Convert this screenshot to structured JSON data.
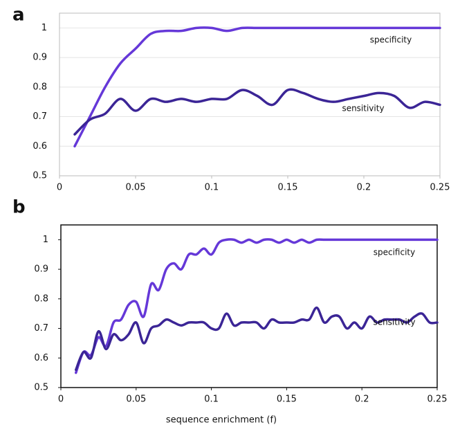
{
  "chart_data": [
    {
      "type": "line",
      "panel_label": "a",
      "grid": true,
      "xlim": [
        0,
        0.25
      ],
      "ylim": [
        0.5,
        1.05
      ],
      "xticks": [
        0,
        0.05,
        0.1,
        0.15,
        0.2,
        0.25
      ],
      "yticks": [
        0.5,
        0.6,
        0.7,
        0.8,
        0.9,
        1
      ],
      "x": [
        0.01,
        0.02,
        0.03,
        0.04,
        0.05,
        0.06,
        0.07,
        0.08,
        0.09,
        0.1,
        0.11,
        0.12,
        0.13,
        0.14,
        0.15,
        0.16,
        0.17,
        0.18,
        0.19,
        0.2,
        0.21,
        0.22,
        0.23,
        0.24,
        0.25
      ],
      "series": [
        {
          "name": "specificity",
          "color": "#6538d8",
          "values": [
            0.6,
            0.7,
            0.8,
            0.88,
            0.93,
            0.98,
            0.99,
            0.99,
            1,
            1,
            0.99,
            1,
            1,
            1,
            1,
            1,
            1,
            1,
            1,
            1,
            1,
            1,
            1,
            1,
            1
          ]
        },
        {
          "name": "sensitivity",
          "color": "#3b2596",
          "values": [
            0.64,
            0.69,
            0.71,
            0.76,
            0.72,
            0.76,
            0.75,
            0.76,
            0.75,
            0.76,
            0.76,
            0.79,
            0.77,
            0.74,
            0.79,
            0.78,
            0.76,
            0.75,
            0.76,
            0.77,
            0.78,
            0.77,
            0.73,
            0.75,
            0.74
          ]
        }
      ]
    },
    {
      "type": "line",
      "panel_label": "b",
      "grid": false,
      "xlim": [
        0,
        0.25
      ],
      "ylim": [
        0.5,
        1.05
      ],
      "xticks": [
        0,
        0.05,
        0.1,
        0.15,
        0.2,
        0.25
      ],
      "yticks": [
        0.5,
        0.6,
        0.7,
        0.8,
        0.9,
        1
      ],
      "x_label": "sequence enrichment (f)",
      "x": [
        0.01,
        0.015,
        0.02,
        0.025,
        0.03,
        0.035,
        0.04,
        0.045,
        0.05,
        0.055,
        0.06,
        0.065,
        0.07,
        0.075,
        0.08,
        0.085,
        0.09,
        0.095,
        0.1,
        0.105,
        0.11,
        0.115,
        0.12,
        0.125,
        0.13,
        0.135,
        0.14,
        0.145,
        0.15,
        0.155,
        0.16,
        0.165,
        0.17,
        0.175,
        0.18,
        0.185,
        0.19,
        0.195,
        0.2,
        0.205,
        0.21,
        0.215,
        0.22,
        0.225,
        0.23,
        0.235,
        0.24,
        0.245,
        0.25
      ],
      "series": [
        {
          "name": "specificity",
          "color": "#6538d8",
          "values": [
            0.55,
            0.62,
            0.61,
            0.67,
            0.64,
            0.72,
            0.73,
            0.78,
            0.79,
            0.74,
            0.85,
            0.83,
            0.9,
            0.92,
            0.9,
            0.95,
            0.95,
            0.97,
            0.95,
            0.99,
            1,
            1,
            0.99,
            1,
            0.99,
            1,
            1,
            0.99,
            1,
            0.99,
            1,
            0.99,
            1,
            1,
            1,
            1,
            1,
            1,
            1,
            1,
            1,
            1,
            1,
            1,
            1,
            1,
            1,
            1,
            1
          ]
        },
        {
          "name": "sensitivity",
          "color": "#3b2596",
          "values": [
            0.56,
            0.62,
            0.6,
            0.69,
            0.63,
            0.68,
            0.66,
            0.68,
            0.72,
            0.65,
            0.7,
            0.71,
            0.73,
            0.72,
            0.71,
            0.72,
            0.72,
            0.72,
            0.7,
            0.7,
            0.75,
            0.71,
            0.72,
            0.72,
            0.72,
            0.7,
            0.73,
            0.72,
            0.72,
            0.72,
            0.73,
            0.73,
            0.77,
            0.72,
            0.74,
            0.74,
            0.7,
            0.72,
            0.7,
            0.74,
            0.72,
            0.73,
            0.73,
            0.73,
            0.72,
            0.74,
            0.75,
            0.72,
            0.72
          ]
        }
      ]
    }
  ]
}
